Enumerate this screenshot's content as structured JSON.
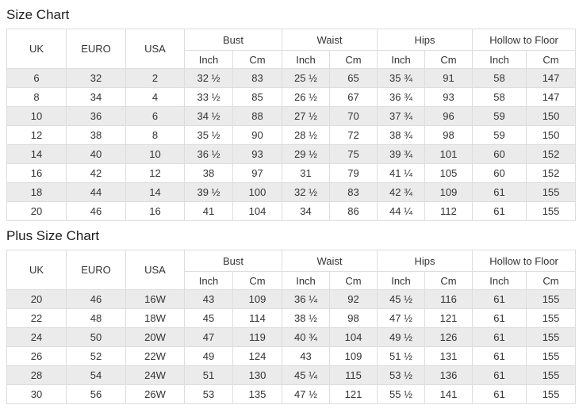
{
  "page": {
    "background": "#ffffff",
    "title_color": "#1c1c1c",
    "text_color": "#333333",
    "stripe_color": "#ebebeb",
    "border_color": "#dddddd"
  },
  "chart_data": [
    {
      "type": "table",
      "title": "Size Chart",
      "main_columns": [
        "UK",
        "EURO",
        "USA"
      ],
      "measurement_groups": [
        "Bust",
        "Waist",
        "Hips",
        "Hollow to Floor"
      ],
      "unit_columns": [
        "Inch",
        "Cm"
      ],
      "rows": [
        [
          "6",
          "32",
          "2",
          "32 ½",
          "83",
          "25 ½",
          "65",
          "35 ¾",
          "91",
          "58",
          "147"
        ],
        [
          "8",
          "34",
          "4",
          "33 ½",
          "85",
          "26 ½",
          "67",
          "36 ¾",
          "93",
          "58",
          "147"
        ],
        [
          "10",
          "36",
          "6",
          "34 ½",
          "88",
          "27 ½",
          "70",
          "37 ¾",
          "96",
          "59",
          "150"
        ],
        [
          "12",
          "38",
          "8",
          "35 ½",
          "90",
          "28 ½",
          "72",
          "38 ¾",
          "98",
          "59",
          "150"
        ],
        [
          "14",
          "40",
          "10",
          "36 ½",
          "93",
          "29 ½",
          "75",
          "39 ¾",
          "101",
          "60",
          "152"
        ],
        [
          "16",
          "42",
          "12",
          "38",
          "97",
          "31",
          "79",
          "41 ¼",
          "105",
          "60",
          "152"
        ],
        [
          "18",
          "44",
          "14",
          "39 ½",
          "100",
          "32 ½",
          "83",
          "42 ¾",
          "109",
          "61",
          "155"
        ],
        [
          "20",
          "46",
          "16",
          "41",
          "104",
          "34",
          "86",
          "44 ¼",
          "112",
          "61",
          "155"
        ]
      ]
    },
    {
      "type": "table",
      "title": "Plus Size Chart",
      "main_columns": [
        "UK",
        "EURO",
        "USA"
      ],
      "measurement_groups": [
        "Bust",
        "Waist",
        "Hips",
        "Hollow to Floor"
      ],
      "unit_columns": [
        "Inch",
        "Cm"
      ],
      "rows": [
        [
          "20",
          "46",
          "16W",
          "43",
          "109",
          "36 ¼",
          "92",
          "45 ½",
          "116",
          "61",
          "155"
        ],
        [
          "22",
          "48",
          "18W",
          "45",
          "114",
          "38 ½",
          "98",
          "47 ½",
          "121",
          "61",
          "155"
        ],
        [
          "24",
          "50",
          "20W",
          "47",
          "119",
          "40 ¾",
          "104",
          "49 ½",
          "126",
          "61",
          "155"
        ],
        [
          "26",
          "52",
          "22W",
          "49",
          "124",
          "43",
          "109",
          "51 ½",
          "131",
          "61",
          "155"
        ],
        [
          "28",
          "54",
          "24W",
          "51",
          "130",
          "45 ¼",
          "115",
          "53 ½",
          "136",
          "61",
          "155"
        ],
        [
          "30",
          "56",
          "26W",
          "53",
          "135",
          "47 ½",
          "121",
          "55 ½",
          "141",
          "61",
          "155"
        ]
      ]
    }
  ]
}
